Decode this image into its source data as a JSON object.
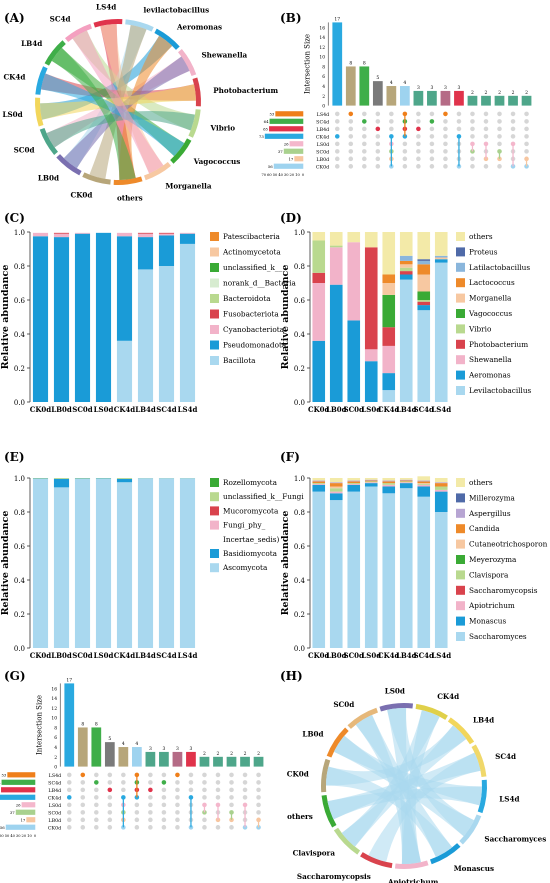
{
  "colors": {
    "levilacto": "#a9d8ef",
    "aeromonas": "#1a9bd7",
    "shewanella": "#f2b3c9",
    "photobact": "#d9434d",
    "vibrio": "#b9d98f",
    "vagococcus": "#3aaa35",
    "morganella": "#f7c8a1",
    "lactococcus": "#ee8a2a",
    "latilacto": "#8ab6dc",
    "proteus": "#4f6aa8",
    "others": "#f3eaa8",
    "sacc": "#a9d8ef",
    "monascus": "#1a9bd7",
    "apiotrichum": "#f2b3c9",
    "saccharomycopsis": "#d9434d",
    "clavispora": "#b9d98f",
    "meyerozyma": "#3aaa35",
    "cutaneo": "#f7c8a1",
    "candida": "#ee8a2a",
    "aspergillus": "#b7a5d3",
    "millerozyma": "#4f6aa8",
    "bacillota": "#a9d8ef",
    "pseudomonadota": "#1a9bd7",
    "cyanobact": "#f2b3c9",
    "fusobact": "#d9434d",
    "bacteroidota": "#b9d98f",
    "norank": "#d7ecd0",
    "unclass_k": "#3aaa35",
    "actino": "#f7c8a1",
    "patesci": "#ee8a2a",
    "ascomycota": "#a9d8ef",
    "basidio": "#1a9bd7",
    "fungi_phy": "#f2b3c9",
    "mucoro": "#d9434d",
    "unclass_fungi": "#b9d98f",
    "rozello": "#3aaa35",
    "upset_set_colors": [
      "#ef7f1a",
      "#3fae49",
      "#e0334b",
      "#29a9e0",
      "#f4b7cc",
      "#a9d18e",
      "#f7c6a0",
      "#9ed3ef"
    ]
  },
  "panels": {
    "A": "(A)",
    "B": "(B)",
    "C": "(C)",
    "D": "(D)",
    "E": "(E)",
    "F": "(F)",
    "G": "(G)",
    "H": "(H)"
  },
  "chart_data": [
    {
      "panel": "A",
      "type": "chord",
      "sectors": [
        "LS4d",
        "levilactobacillus",
        "Aeromonas",
        "Shewanella",
        "Photobacterium",
        "Vibrio",
        "Vagococcus",
        "Morganella",
        "others",
        "CK0d",
        "LB0d",
        "SC0d",
        "LS0d",
        "CK4d",
        "LB4d",
        "SC4d"
      ],
      "sector_ticks": [
        "0.0",
        "0.5",
        "1.0"
      ]
    },
    {
      "panel": "B",
      "type": "bar",
      "ylabel": "Intersection Size",
      "yticks": [
        "0",
        "2",
        "4",
        "6",
        "8",
        "10",
        "12",
        "14",
        "16"
      ],
      "values": [
        17,
        8,
        8,
        5,
        4,
        4,
        3,
        3,
        3,
        3,
        2,
        2,
        2,
        2,
        2
      ],
      "bar_colors": [
        "#29a9e0",
        "#b7a67a",
        "#3fae49",
        "#7a7a7a",
        "#b7a67a",
        "#9ed3ef",
        "#4ea68a",
        "#4ea68a",
        "#b56b86",
        "#e0334b",
        "#4ea68a",
        "#4ea68a",
        "#4ea68a",
        "#4ea68a",
        "#4ea68a"
      ],
      "sets": [
        "LS4d",
        "SC4d",
        "LB4d",
        "CK4d",
        "LS0d",
        "SC0d",
        "LB0d",
        "CK0d"
      ],
      "set_sizes": [
        53,
        64,
        65,
        73,
        26,
        37,
        17,
        56
      ],
      "set_size_ticks": [
        "70",
        "60",
        "50",
        "40",
        "30",
        "20",
        "10",
        "0"
      ],
      "matrix": [
        [
          3
        ],
        [
          0
        ],
        [
          1
        ],
        [
          2
        ],
        [
          3,
          4,
          5,
          6,
          7
        ],
        [
          0,
          1,
          2,
          3
        ],
        [
          2
        ],
        [
          1
        ],
        [
          0
        ],
        [
          3,
          7
        ],
        [
          4,
          5
        ],
        [
          4,
          6
        ],
        [
          5,
          6
        ],
        [
          4,
          7
        ],
        [
          6,
          7
        ]
      ]
    },
    {
      "panel": "C",
      "type": "bar",
      "stacked": true,
      "ylabel": "Relative abundance",
      "ylim": [
        0,
        1
      ],
      "yticks": [
        "0.0",
        "0.2",
        "0.4",
        "0.6",
        "0.8",
        "1.0"
      ],
      "categories": [
        "CK0d",
        "LB0d",
        "SC0d",
        "LS0d",
        "CK4d",
        "LB4d",
        "SC4d",
        "LS4d"
      ],
      "series": [
        {
          "name": "Bacillota",
          "color": "bacillota",
          "values": [
            0.0,
            0.0,
            0.0,
            0.0,
            0.36,
            0.78,
            0.8,
            0.93
          ]
        },
        {
          "name": "Pseudomonadota",
          "color": "pseudomonadota",
          "values": [
            0.975,
            0.97,
            0.99,
            0.995,
            0.615,
            0.19,
            0.18,
            0.06
          ]
        },
        {
          "name": "Cyanobacteriota",
          "color": "cyanobact",
          "values": [
            0.02,
            0.02,
            0.005,
            0.0,
            0.02,
            0.02,
            0.01,
            0.005
          ]
        },
        {
          "name": "Fusobacteriota",
          "color": "fusobact",
          "values": [
            0.0,
            0.005,
            0.0,
            0.0,
            0.0,
            0.005,
            0.005,
            0.0
          ]
        },
        {
          "name": "Bacteroidota",
          "color": "bacteroidota",
          "values": [
            0.0,
            0.0,
            0.0,
            0.0,
            0.0,
            0.0,
            0.0,
            0.0
          ]
        },
        {
          "name": "norank_d__Bacteria",
          "color": "norank",
          "values": [
            0.0,
            0.0,
            0.0,
            0.0,
            0.0,
            0.0,
            0.0,
            0.0
          ]
        },
        {
          "name": "unclassified_k__",
          "color": "unclass_k",
          "values": [
            0.0,
            0.0,
            0.0,
            0.0,
            0.0,
            0.0,
            0.0,
            0.0
          ]
        },
        {
          "name": "Actinomycetota",
          "color": "actino",
          "values": [
            0.0,
            0.0,
            0.0,
            0.0,
            0.0,
            0.0,
            0.0,
            0.0
          ]
        },
        {
          "name": "Patescibacteria",
          "color": "patesci",
          "values": [
            0.0,
            0.0,
            0.0,
            0.0,
            0.0,
            0.0,
            0.0,
            0.0
          ]
        }
      ],
      "legend": [
        "Patescibacteria",
        "Actinomycetota",
        "unclassified_k__",
        "norank_d__Bacteria",
        "Bacteroidota",
        "Fusobacteriota",
        "Cyanobacteriota",
        "Pseudomonadota",
        "Bacillota"
      ]
    },
    {
      "panel": "D",
      "type": "bar",
      "stacked": true,
      "ylabel": "Relative abundance",
      "ylim": [
        0,
        1
      ],
      "yticks": [
        "0.0",
        "0.2",
        "0.4",
        "0.6",
        "0.8",
        "1.0"
      ],
      "categories": [
        "CK0d",
        "LB0d",
        "SC0d",
        "LS0d",
        "CK4d",
        "LB4d",
        "SC4d",
        "LS4d"
      ],
      "series": [
        {
          "name": "Levilactobacillus",
          "color": "levilacto",
          "values": [
            0.0,
            0.0,
            0.0,
            0.0,
            0.07,
            0.72,
            0.54,
            0.82
          ]
        },
        {
          "name": "Aeromonas",
          "color": "aeromonas",
          "values": [
            0.36,
            0.69,
            0.48,
            0.24,
            0.1,
            0.03,
            0.03,
            0.02
          ]
        },
        {
          "name": "Shewanella",
          "color": "shewanella",
          "values": [
            0.34,
            0.22,
            0.46,
            0.07,
            0.16,
            0.0,
            0.0,
            0.0
          ]
        },
        {
          "name": "Photobacterium",
          "color": "photobact",
          "values": [
            0.06,
            0.0,
            0.0,
            0.6,
            0.11,
            0.02,
            0.02,
            0.0
          ]
        },
        {
          "name": "Vibrio",
          "color": "vibrio",
          "values": [
            0.19,
            0.01,
            0.0,
            0.0,
            0.0,
            0.02,
            0.01,
            0.0
          ]
        },
        {
          "name": "Vagococcus",
          "color": "vagococcus",
          "values": [
            0.0,
            0.0,
            0.0,
            0.0,
            0.19,
            0.0,
            0.05,
            0.0
          ]
        },
        {
          "name": "Morganella",
          "color": "morganella",
          "values": [
            0.0,
            0.0,
            0.0,
            0.0,
            0.07,
            0.02,
            0.1,
            0.01
          ]
        },
        {
          "name": "Lactococcus",
          "color": "lactococcus",
          "values": [
            0.0,
            0.0,
            0.0,
            0.0,
            0.05,
            0.02,
            0.06,
            0.0
          ]
        },
        {
          "name": "Latilactobacillus",
          "color": "latilacto",
          "values": [
            0.0,
            0.0,
            0.0,
            0.0,
            0.0,
            0.03,
            0.02,
            0.01
          ]
        },
        {
          "name": "Proteus",
          "color": "proteus",
          "values": [
            0.0,
            0.0,
            0.0,
            0.0,
            0.0,
            0.0,
            0.01,
            0.0
          ]
        },
        {
          "name": "others",
          "color": "others",
          "values": [
            0.05,
            0.08,
            0.06,
            0.09,
            0.25,
            0.14,
            0.16,
            0.14
          ]
        }
      ],
      "legend": [
        "others",
        "Proteus",
        "Latilactobacillus",
        "Lactococcus",
        "Morganella",
        "Vagococcus",
        "Vibrio",
        "Photobacterium",
        "Shewanella",
        "Aeromonas",
        "Levilactobacillus"
      ]
    },
    {
      "panel": "E",
      "type": "bar",
      "stacked": true,
      "ylabel": "Relative abundance",
      "ylim": [
        0,
        1
      ],
      "yticks": [
        "0.0",
        "0.2",
        "0.4",
        "0.6",
        "0.8",
        "1.0"
      ],
      "categories": [
        "CK0d",
        "LB0d",
        "SC0d",
        "LS0d",
        "CK4d",
        "LB4d",
        "SC4d",
        "LS4d"
      ],
      "series": [
        {
          "name": "Ascomycota",
          "color": "ascomycota",
          "values": [
            0.995,
            0.945,
            0.995,
            0.995,
            0.975,
            0.998,
            0.998,
            0.998
          ]
        },
        {
          "name": "Basidiomycota",
          "color": "basidio",
          "values": [
            0.002,
            0.05,
            0.002,
            0.003,
            0.02,
            0.001,
            0.001,
            0.001
          ]
        },
        {
          "name": "Fungi_phy_Incertae_sedis",
          "color": "fungi_phy",
          "values": [
            0.0,
            0.0,
            0.0,
            0.0,
            0.0,
            0.0,
            0.0,
            0.0
          ]
        },
        {
          "name": "Mucoromycota",
          "color": "mucoro",
          "values": [
            0.0,
            0.0,
            0.0,
            0.0,
            0.0,
            0.0,
            0.0,
            0.0
          ]
        },
        {
          "name": "unclassified_k__Fungi",
          "color": "unclass_fungi",
          "values": [
            0.003,
            0.005,
            0.003,
            0.002,
            0.005,
            0.001,
            0.001,
            0.001
          ]
        },
        {
          "name": "Rozellomycota",
          "color": "rozello",
          "values": [
            0.0,
            0.0,
            0.0,
            0.0,
            0.0,
            0.0,
            0.0,
            0.0
          ]
        }
      ],
      "legend": [
        "Rozellomycota",
        "unclassified_k__Fungi",
        "Mucoromycota",
        "Fungi_phy_",
        "Incertae_sedis)",
        "Basidiomycota",
        "Ascomycota"
      ]
    },
    {
      "panel": "F",
      "type": "bar",
      "stacked": true,
      "ylabel": "Relative abundance",
      "ylim": [
        0,
        1
      ],
      "yticks": [
        "0.0",
        "0.2",
        "0.4",
        "0.6",
        "0.8",
        "1.0"
      ],
      "categories": [
        "CK0d",
        "LB0d",
        "SC0d",
        "LS0d",
        "CK4d",
        "LB4d",
        "SC4d",
        "LS4d"
      ],
      "series": [
        {
          "name": "Saccharomyces",
          "color": "sacc",
          "values": [
            0.92,
            0.87,
            0.92,
            0.95,
            0.91,
            0.94,
            0.89,
            0.8
          ]
        },
        {
          "name": "Monascus",
          "color": "monascus",
          "values": [
            0.04,
            0.04,
            0.04,
            0.02,
            0.04,
            0.03,
            0.06,
            0.12
          ]
        },
        {
          "name": "Apiotrichum",
          "color": "apiotrichum",
          "values": [
            0.005,
            0.01,
            0.005,
            0.005,
            0.01,
            0.005,
            0.01,
            0.01
          ]
        },
        {
          "name": "Saccharomycopsis",
          "color": "saccharomycopsis",
          "values": [
            0.0,
            0.0,
            0.0,
            0.0,
            0.0,
            0.0,
            0.0,
            0.0
          ]
        },
        {
          "name": "Clavispora",
          "color": "clavispora",
          "values": [
            0.005,
            0.02,
            0.005,
            0.005,
            0.01,
            0.005,
            0.005,
            0.02
          ]
        },
        {
          "name": "Meyerozyma",
          "color": "meyerozyma",
          "values": [
            0.0,
            0.0,
            0.0,
            0.0,
            0.0,
            0.0,
            0.0,
            0.0
          ]
        },
        {
          "name": "Cutaneotrichosporon",
          "color": "cutaneo",
          "values": [
            0.0,
            0.01,
            0.0,
            0.0,
            0.0,
            0.0,
            0.005,
            0.0
          ]
        },
        {
          "name": "Candida",
          "color": "candida",
          "values": [
            0.01,
            0.02,
            0.01,
            0.005,
            0.01,
            0.005,
            0.01,
            0.02
          ]
        },
        {
          "name": "Aspergillus",
          "color": "aspergillus",
          "values": [
            0.005,
            0.005,
            0.005,
            0.005,
            0.005,
            0.005,
            0.005,
            0.005
          ]
        },
        {
          "name": "Millerozyma",
          "color": "millerozyma",
          "values": [
            0.0,
            0.0,
            0.0,
            0.0,
            0.0,
            0.0,
            0.0,
            0.0
          ]
        },
        {
          "name": "others",
          "color": "others",
          "values": [
            0.015,
            0.025,
            0.015,
            0.01,
            0.015,
            0.01,
            0.025,
            0.025
          ]
        }
      ],
      "legend": [
        "others",
        "Millerozyma",
        "Aspergillus",
        "Candida",
        "Cutaneotrichosporon",
        "Meyerozyma",
        "Clavispora",
        "Saccharomycopsis",
        "Apiotrichum",
        "Monascus",
        "Saccharomyces"
      ]
    },
    {
      "panel": "G",
      "type": "bar",
      "ylabel": "Intersection Size",
      "yticks": [
        "0",
        "2",
        "4",
        "6",
        "8",
        "10",
        "12",
        "14",
        "16"
      ],
      "values": [
        17,
        8,
        8,
        5,
        4,
        4,
        3,
        3,
        3,
        3,
        2,
        2,
        2,
        2,
        2
      ],
      "bar_colors": [
        "#29a9e0",
        "#b7a67a",
        "#3fae49",
        "#7a7a7a",
        "#b7a67a",
        "#9ed3ef",
        "#4ea68a",
        "#4ea68a",
        "#b56b86",
        "#e0334b",
        "#4ea68a",
        "#4ea68a",
        "#4ea68a",
        "#4ea68a",
        "#4ea68a"
      ],
      "sets": [
        "LS4d",
        "SC4d",
        "LB4d",
        "CK4d",
        "LS0d",
        "SC0d",
        "LB0d",
        "CK0d"
      ],
      "set_sizes": [
        53,
        64,
        65,
        73,
        26,
        37,
        17,
        56
      ],
      "set_size_ticks": [
        "70",
        "60",
        "50",
        "40",
        "30",
        "20",
        "10",
        "0"
      ],
      "matrix": [
        [
          3
        ],
        [
          0
        ],
        [
          1
        ],
        [
          2
        ],
        [
          3,
          4,
          5,
          6,
          7
        ],
        [
          0,
          1,
          2,
          3
        ],
        [
          2
        ],
        [
          1
        ],
        [
          0
        ],
        [
          3,
          7
        ],
        [
          4,
          5
        ],
        [
          4,
          6
        ],
        [
          5,
          6
        ],
        [
          4,
          7
        ],
        [
          6,
          7
        ]
      ]
    },
    {
      "panel": "H",
      "type": "chord",
      "sectors": [
        "LS0d",
        "CK4d",
        "LB4d",
        "SC4d",
        "LS4d",
        "Saccharomyces",
        "Monascus",
        "Apiotrichum",
        "Saccharomycopsis",
        "Clavispora",
        "others",
        "CK0d",
        "LB0d",
        "SC0d"
      ],
      "sector_ticks": [
        "0.0",
        "0.5",
        "1.0",
        "1.5",
        "2.0",
        "2.5",
        "3.0",
        "3.5",
        "4.0",
        "4.5",
        "5.0",
        "5.5",
        "6.0",
        "6.5",
        "7.0"
      ]
    }
  ]
}
